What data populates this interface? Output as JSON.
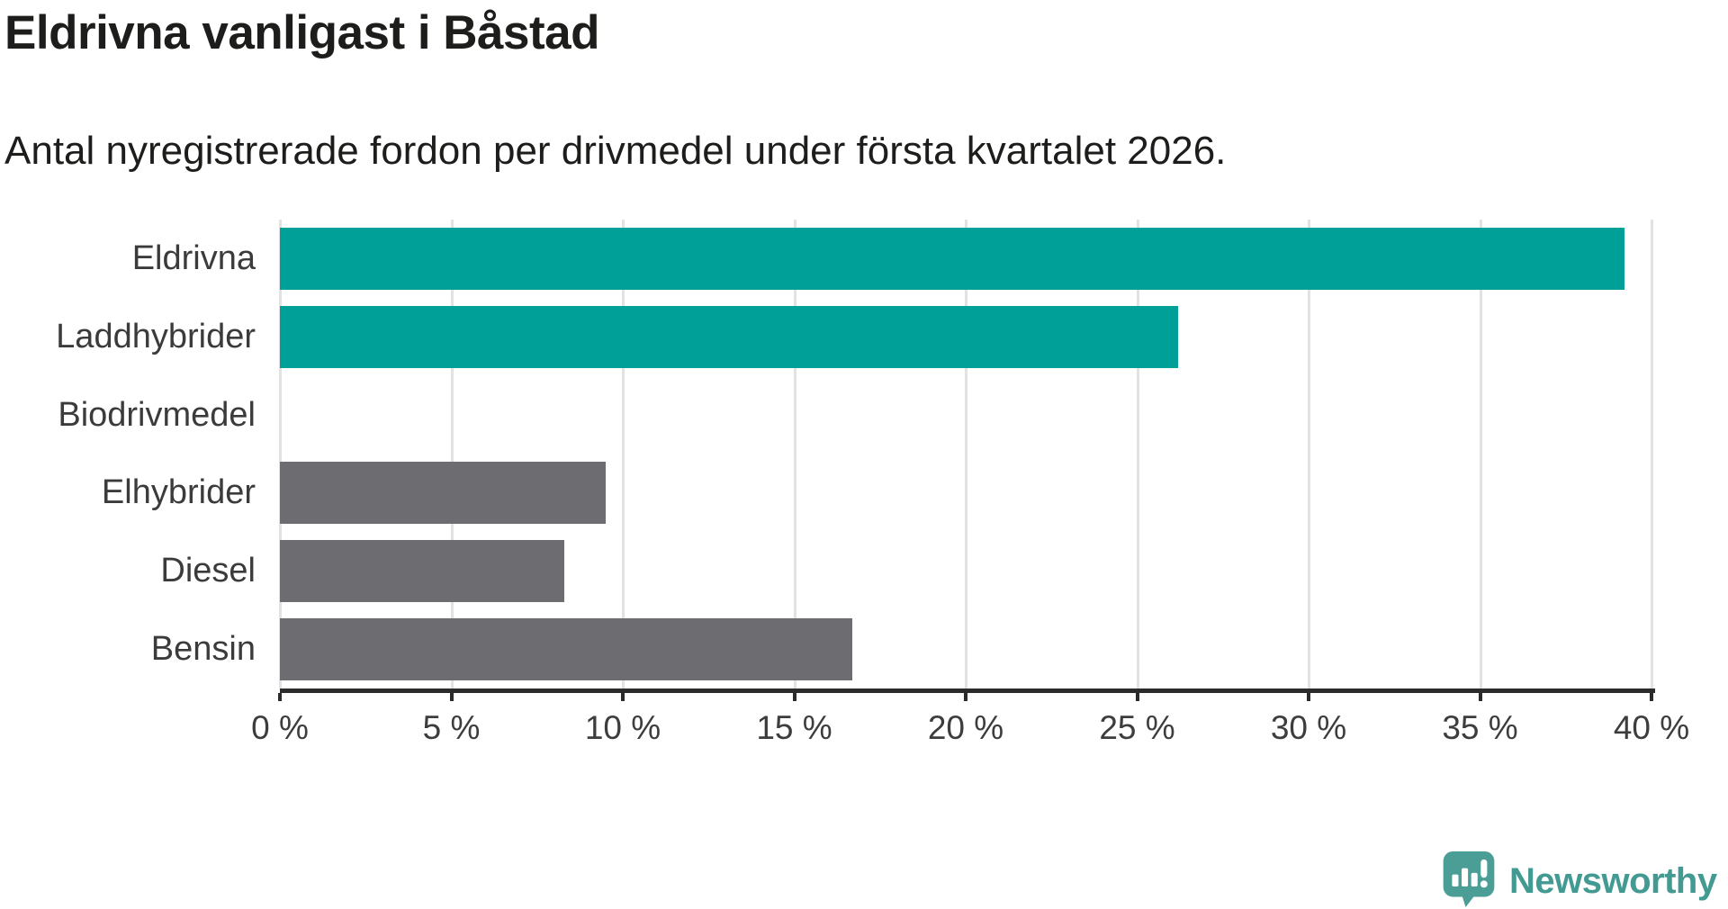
{
  "header": {
    "title": "Eldrivna vanligast i Båstad",
    "subtitle": "Antal nyregistrerade fordon per drivmedel under första kvartalet 2026."
  },
  "chart_data": {
    "type": "bar",
    "orientation": "horizontal",
    "title": "Eldrivna vanligast i Båstad",
    "subtitle": "Antal nyregistrerade fordon per drivmedel under första kvartalet 2026.",
    "categories": [
      "Eldrivna",
      "Laddhybrider",
      "Biodrivmedel",
      "Elhybrider",
      "Diesel",
      "Bensin"
    ],
    "values": [
      39.2,
      26.2,
      0,
      9.5,
      8.3,
      16.7
    ],
    "unit": "%",
    "bar_colors": [
      "#00a099",
      "#00a099",
      "#6d6d71",
      "#6d6d71",
      "#6d6d71",
      "#6d6d71"
    ],
    "xlim": [
      0,
      40
    ],
    "x_ticks": [
      0,
      5,
      10,
      15,
      20,
      25,
      30,
      35,
      40
    ],
    "x_tick_labels": [
      "0 %",
      "5 %",
      "10 %",
      "15 %",
      "20 %",
      "25 %",
      "30 %",
      "35 %",
      "40 %"
    ],
    "grid": true,
    "legend": "none",
    "highlight_color": "#00a099",
    "default_color": "#6d6d71"
  },
  "footer": {
    "brand": "Newsworthy",
    "logo_icon": "newsworthy-speech-bubble-chart-icon",
    "logo_color": "#4a9e96"
  }
}
